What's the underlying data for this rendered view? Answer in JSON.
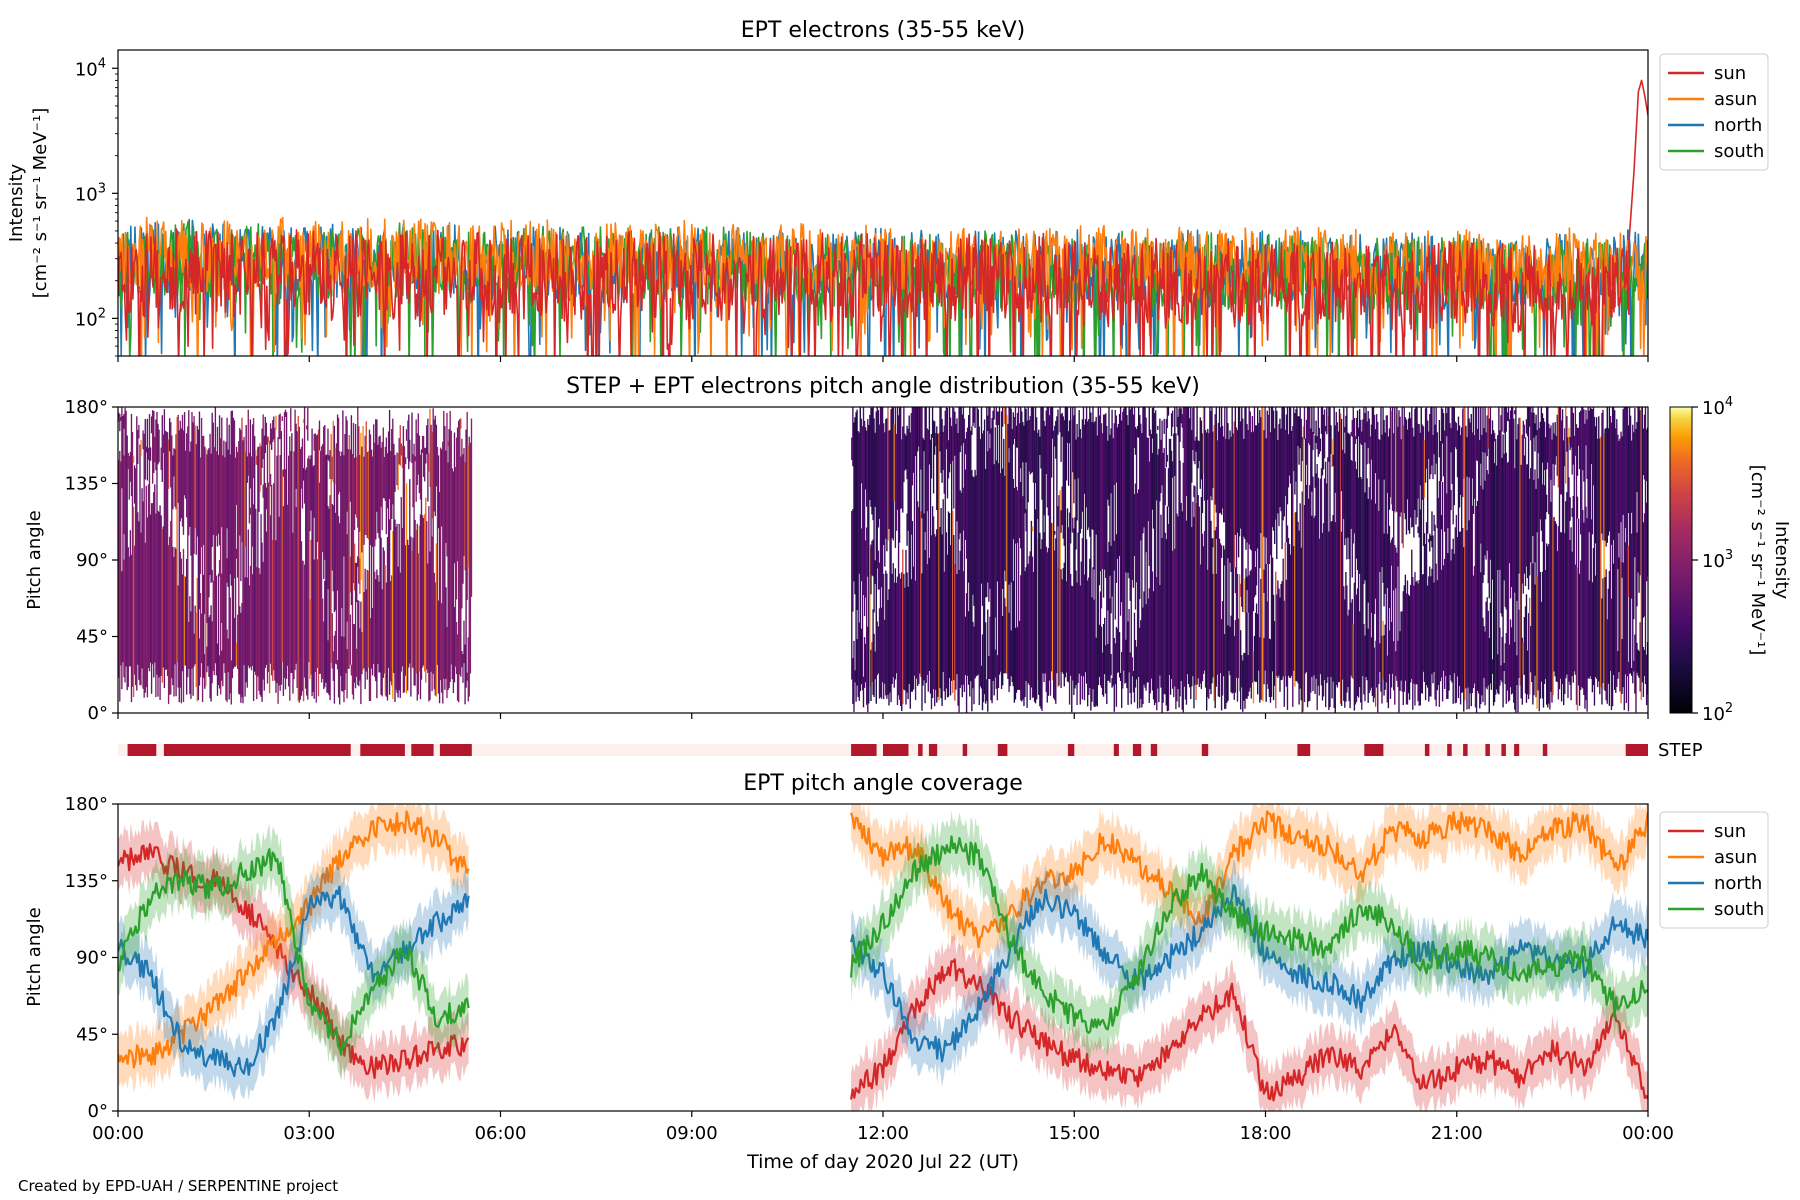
{
  "credit": "Created by EPD-UAH / SERPENTINE project",
  "colors": {
    "sun": "#d62728",
    "asun": "#ff7f0e",
    "north": "#1f77b4",
    "south": "#2ca02c",
    "step_bar": "#b2182b",
    "step_bg": "#fdf0ec"
  },
  "shared_x": {
    "label": "Time of day 2020 Jul 22 (UT)",
    "range_hours": [
      0,
      24
    ],
    "ticks": [
      "00:00",
      "03:00",
      "06:00",
      "09:00",
      "12:00",
      "15:00",
      "18:00",
      "21:00",
      "00:00"
    ]
  },
  "chart_data": [
    {
      "type": "line",
      "title": "EPT electrons (35-55 keV)",
      "ylabel_line1": "Intensity",
      "ylabel_line2": "[cm⁻² s⁻¹ sr⁻¹ MeV⁻¹]",
      "yscale": "log",
      "ylim": [
        50,
        14000
      ],
      "yticks": [
        {
          "value": 100,
          "base": "10",
          "exp": "2"
        },
        {
          "value": 1000,
          "base": "10",
          "exp": "3"
        },
        {
          "value": 10000,
          "base": "10",
          "exp": "4"
        }
      ],
      "legend_position": "right-top",
      "series": [
        {
          "name": "sun",
          "color": "#d62728",
          "segments": [
            {
              "t0": 0,
              "t1": 23.7,
              "median": 230,
              "spread": 0.35,
              "seed": 11
            }
          ],
          "burst": {
            "t": [
              23.7,
              23.78,
              23.85,
              23.9,
              23.95,
              24.0
            ],
            "v": [
              400,
              1500,
              6500,
              8000,
              6000,
              4200
            ]
          }
        },
        {
          "name": "asun",
          "color": "#ff7f0e",
          "segments": [
            {
              "t0": 0,
              "t1": 24,
              "median": 340,
              "spread": 0.28,
              "seed": 23
            }
          ]
        },
        {
          "name": "north",
          "color": "#1f77b4",
          "segments": [
            {
              "t0": 0,
              "t1": 24,
              "median": 300,
              "spread": 0.3,
              "seed": 37
            }
          ]
        },
        {
          "name": "south",
          "color": "#2ca02c",
          "segments": [
            {
              "t0": 0,
              "t1": 24,
              "median": 290,
              "spread": 0.3,
              "seed": 53
            }
          ]
        }
      ]
    },
    {
      "type": "heatmap",
      "title": "STEP + EPT electrons pitch angle distribution (35-55 keV)",
      "ylabel": "Pitch angle",
      "ylim": [
        0,
        180
      ],
      "yticks": [
        "0°",
        "45°",
        "90°",
        "135°",
        "180°"
      ],
      "data_intervals_hours": [
        [
          0,
          5.55
        ],
        [
          11.5,
          24
        ]
      ],
      "colorbar": {
        "scale": "log",
        "range": [
          100,
          10000
        ],
        "ticks": [
          {
            "value": 100,
            "base": "10",
            "exp": "2"
          },
          {
            "value": 1000,
            "base": "10",
            "exp": "3"
          },
          {
            "value": 10000,
            "base": "10",
            "exp": "4"
          }
        ],
        "label_line1": "Intensity",
        "label_line2": "[cm⁻² s⁻¹ sr⁻¹ MeV⁻¹]",
        "colormap": "inferno"
      }
    },
    {
      "type": "bar",
      "label": "STEP",
      "step_intervals_hours": [
        [
          0.15,
          0.6
        ],
        [
          0.72,
          3.65
        ],
        [
          3.8,
          4.5
        ],
        [
          4.6,
          4.95
        ],
        [
          5.05,
          5.55
        ],
        [
          11.5,
          11.9
        ],
        [
          12.0,
          12.4
        ],
        [
          12.55,
          12.62
        ],
        [
          12.72,
          12.85
        ],
        [
          13.25,
          13.32
        ],
        [
          13.8,
          13.95
        ],
        [
          14.9,
          15.0
        ],
        [
          15.62,
          15.7
        ],
        [
          15.92,
          16.05
        ],
        [
          16.2,
          16.3
        ],
        [
          17.0,
          17.1
        ],
        [
          18.5,
          18.7
        ],
        [
          19.55,
          19.85
        ],
        [
          20.5,
          20.57
        ],
        [
          20.85,
          20.92
        ],
        [
          21.1,
          21.17
        ],
        [
          21.45,
          21.52
        ],
        [
          21.7,
          21.77
        ],
        [
          21.9,
          21.98
        ],
        [
          22.35,
          22.42
        ],
        [
          23.65,
          24.0
        ]
      ]
    },
    {
      "type": "line",
      "title": "EPT pitch angle coverage",
      "ylabel": "Pitch angle",
      "ylim": [
        0,
        180
      ],
      "yticks": [
        "0°",
        "45°",
        "90°",
        "135°",
        "180°"
      ],
      "legend_position": "right-top",
      "band_halfwidth_deg": 15,
      "data_intervals_hours": [
        [
          0,
          5.5
        ],
        [
          11.5,
          24
        ]
      ],
      "series": [
        {
          "name": "sun",
          "color": "#d62728",
          "t": [
            0,
            0.5,
            1,
            1.5,
            2,
            2.5,
            3,
            3.5,
            4,
            4.5,
            5,
            5.5,
            11.5,
            12,
            12.5,
            13,
            13.5,
            14,
            14.5,
            15,
            15.5,
            16,
            16.5,
            17,
            17.5,
            18,
            18.5,
            19,
            19.5,
            20,
            20.5,
            21,
            21.5,
            22,
            22.5,
            23,
            23.5,
            24
          ],
          "v": [
            145,
            150,
            140,
            135,
            120,
            95,
            70,
            40,
            25,
            30,
            35,
            40,
            10,
            25,
            60,
            85,
            75,
            55,
            40,
            30,
            25,
            20,
            35,
            55,
            70,
            10,
            20,
            35,
            25,
            45,
            15,
            25,
            30,
            20,
            35,
            25,
            55,
            10
          ]
        },
        {
          "name": "asun",
          "color": "#ff7f0e",
          "t": [
            0,
            0.5,
            1,
            1.5,
            2,
            2.5,
            3,
            3.5,
            4,
            4.5,
            5,
            5.5,
            11.5,
            12,
            12.5,
            13,
            13.5,
            14,
            14.5,
            15,
            15.5,
            16,
            16.5,
            17,
            17.5,
            18,
            18.5,
            19,
            19.5,
            20,
            20.5,
            21,
            21.5,
            22,
            22.5,
            23,
            23.5,
            24
          ],
          "v": [
            35,
            30,
            45,
            60,
            80,
            100,
            120,
            150,
            165,
            170,
            160,
            140,
            170,
            150,
            155,
            120,
            100,
            115,
            135,
            140,
            160,
            145,
            130,
            110,
            150,
            170,
            160,
            155,
            140,
            165,
            160,
            170,
            165,
            150,
            165,
            170,
            140,
            170
          ]
        },
        {
          "name": "north",
          "color": "#1f77b4",
          "t": [
            0,
            0.5,
            1,
            1.5,
            2,
            2.5,
            3,
            3.5,
            4,
            4.5,
            5,
            5.5,
            11.5,
            12,
            12.5,
            13,
            13.5,
            14,
            14.5,
            15,
            15.5,
            16,
            16.5,
            17,
            17.5,
            18,
            18.5,
            19,
            19.5,
            20,
            20.5,
            21,
            21.5,
            22,
            22.5,
            23,
            23.5,
            24
          ],
          "v": [
            95,
            80,
            40,
            30,
            25,
            55,
            120,
            125,
            80,
            95,
            110,
            125,
            100,
            80,
            40,
            35,
            60,
            95,
            125,
            115,
            90,
            75,
            90,
            105,
            130,
            90,
            80,
            75,
            65,
            90,
            95,
            85,
            80,
            95,
            90,
            85,
            110,
            100
          ]
        },
        {
          "name": "south",
          "color": "#2ca02c",
          "t": [
            0,
            0.5,
            1,
            1.5,
            2,
            2.5,
            3,
            3.5,
            4,
            4.5,
            5,
            5.5,
            11.5,
            12,
            12.5,
            13,
            13.5,
            14,
            14.5,
            15,
            15.5,
            16,
            16.5,
            17,
            17.5,
            18,
            18.5,
            19,
            19.5,
            20,
            20.5,
            21,
            21.5,
            22,
            22.5,
            23,
            23.5,
            24
          ],
          "v": [
            85,
            125,
            135,
            130,
            140,
            150,
            60,
            40,
            70,
            95,
            55,
            60,
            85,
            110,
            140,
            155,
            150,
            100,
            70,
            55,
            50,
            80,
            120,
            140,
            115,
            105,
            100,
            95,
            120,
            110,
            85,
            95,
            90,
            80,
            85,
            90,
            60,
            75
          ]
        }
      ]
    }
  ]
}
